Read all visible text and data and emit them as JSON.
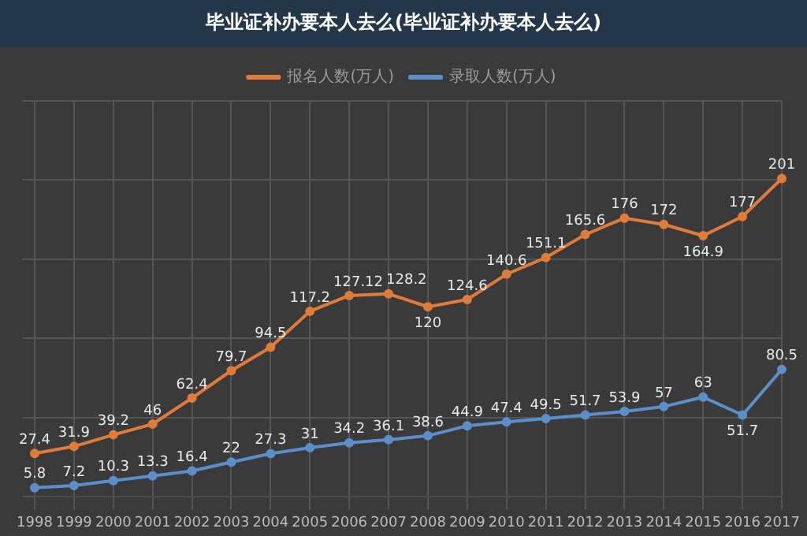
{
  "chart_data": {
    "type": "line",
    "title": "毕业证补办要本人去么(毕业证补办要本人去么)",
    "categories": [
      "1998",
      "1999",
      "2000",
      "2001",
      "2002",
      "2003",
      "2004",
      "2005",
      "2006",
      "2007",
      "2008",
      "2009",
      "2010",
      "2011",
      "2012",
      "2013",
      "2014",
      "2015",
      "2016",
      "2017"
    ],
    "series": [
      {
        "name": "报名人数(万人)",
        "color": "#e07b39",
        "values": [
          27.4,
          31.9,
          39.2,
          46,
          62.4,
          79.7,
          94.5,
          117.2,
          127.12,
          128.2,
          120,
          124.6,
          140.6,
          151.1,
          165.6,
          176,
          172,
          164.9,
          177,
          201
        ]
      },
      {
        "name": "录取人数(万人)",
        "color": "#5b8fc9",
        "values": [
          5.8,
          7.2,
          10.3,
          13.3,
          16.4,
          22,
          27.3,
          31,
          34.2,
          36.1,
          38.6,
          44.9,
          47.4,
          49.5,
          51.7,
          53.9,
          57,
          63,
          51.7,
          80.5
        ]
      }
    ],
    "data_labels": true,
    "grid": true,
    "legend": "top",
    "tick_labels": "x",
    "marker": "circle",
    "line_style": "solid"
  }
}
